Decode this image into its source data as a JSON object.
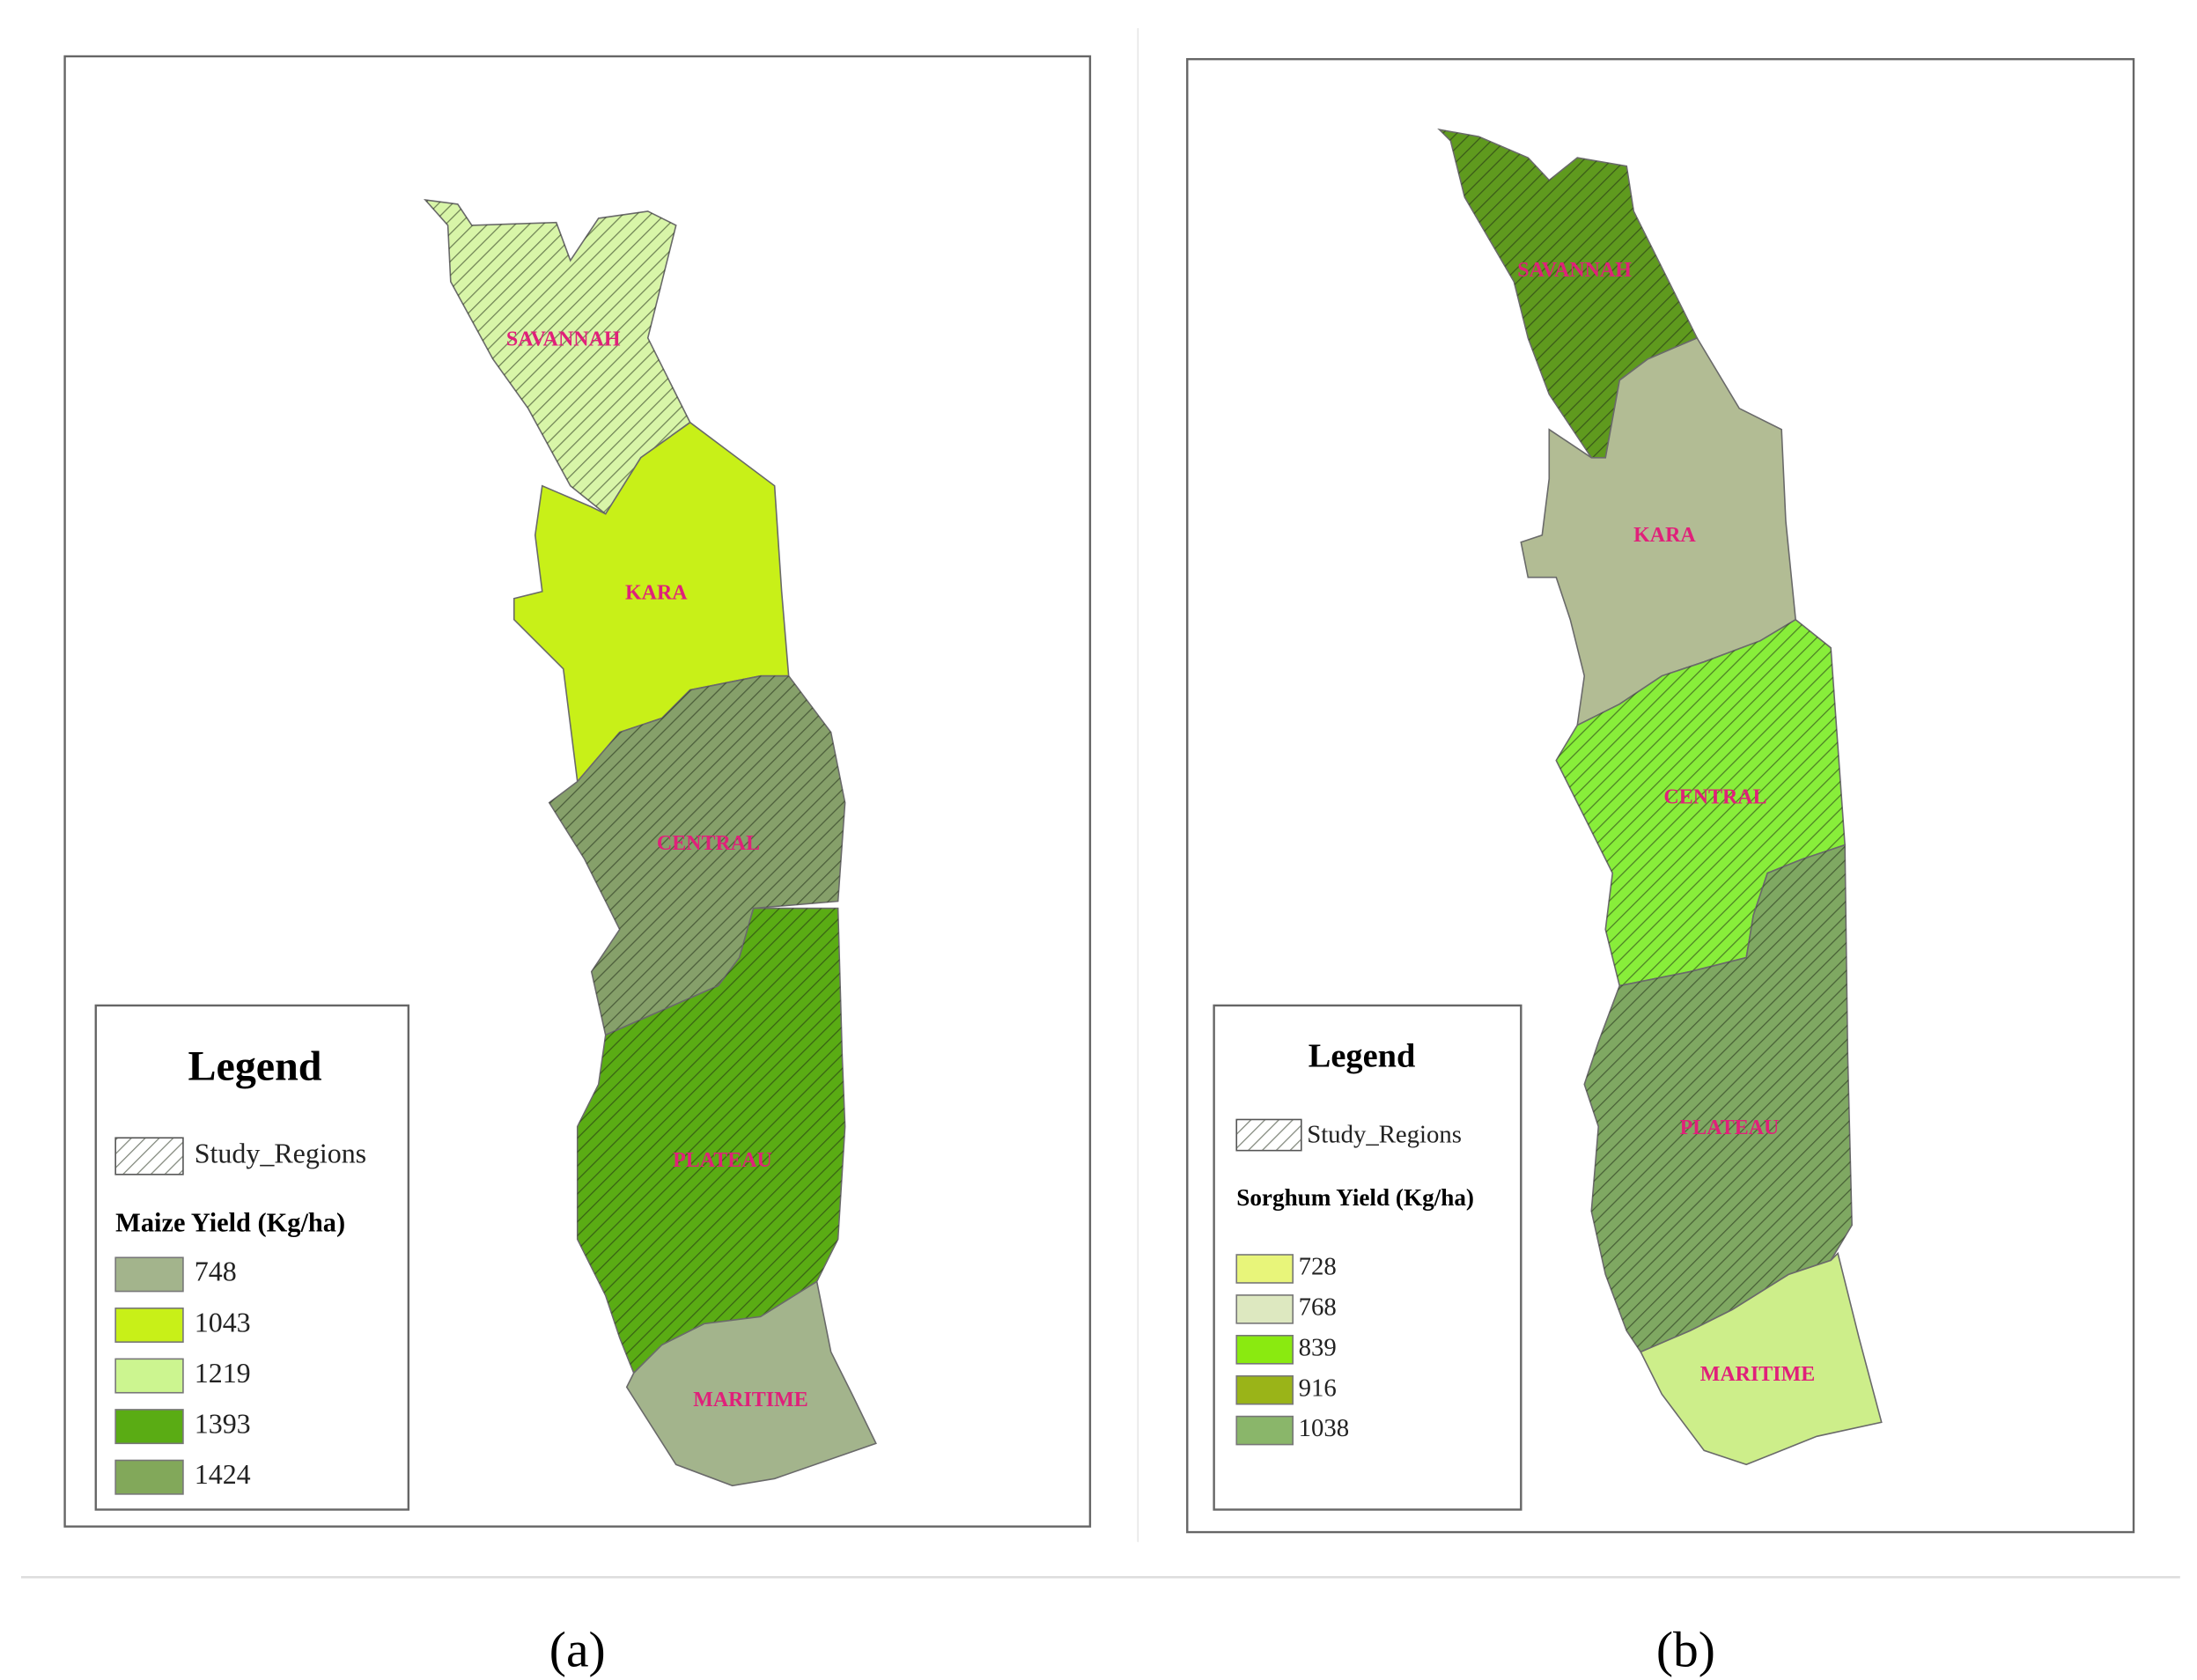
{
  "panels": [
    {
      "label": "(a)",
      "legend_title": "Legend",
      "study_label": "Study_Regions",
      "yield_title": "Maize Yield (Kg/ha)",
      "legend_items": [
        {
          "value": 748,
          "color": "#a3b48c"
        },
        {
          "value": 1043,
          "color": "#c8f018"
        },
        {
          "value": 1219,
          "color": "#ccf590"
        },
        {
          "value": 1393,
          "color": "#5aac14"
        },
        {
          "value": 1424,
          "color": "#82a85a"
        }
      ],
      "regions": [
        {
          "name": "SAVANNAH",
          "color": "#d8f5a8",
          "study_region": true
        },
        {
          "name": "KARA",
          "color": "#c8f018",
          "study_region": false
        },
        {
          "name": "CENTRAL",
          "color": "#86a06a",
          "study_region": true
        },
        {
          "name": "PLATEAU",
          "color": "#5aac14",
          "study_region": true
        },
        {
          "name": "MARITIME",
          "color": "#a3b48c",
          "study_region": false
        }
      ]
    },
    {
      "label": "(b)",
      "legend_title": "Legend",
      "study_label": "Study_Regions",
      "yield_title": "Sorghum Yield (Kg/ha)",
      "legend_items": [
        {
          "value": 728,
          "color": "#e8f57a"
        },
        {
          "value": 768,
          "color": "#dde8c0"
        },
        {
          "value": 839,
          "color": "#8aea10"
        },
        {
          "value": 916,
          "color": "#9ab418"
        },
        {
          "value": 1038,
          "color": "#8ab66a"
        }
      ],
      "regions": [
        {
          "name": "SAVANNAH",
          "color": "#5f9a1e",
          "study_region": true
        },
        {
          "name": "KARA",
          "color": "#b2bc94",
          "study_region": false
        },
        {
          "name": "CENTRAL",
          "color": "#88ee3a",
          "study_region": true
        },
        {
          "name": "PLATEAU",
          "color": "#7fa862",
          "study_region": true
        },
        {
          "name": "MARITIME",
          "color": "#cdee8a",
          "study_region": false
        }
      ]
    }
  ]
}
